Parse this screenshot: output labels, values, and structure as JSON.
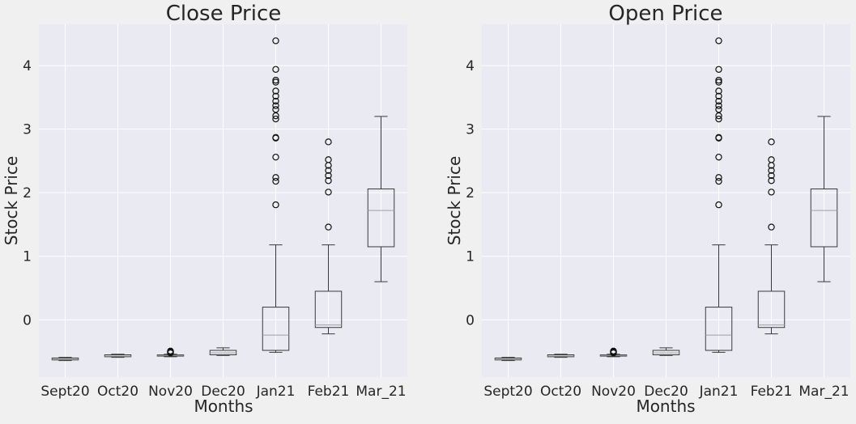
{
  "chart_data": [
    {
      "type": "box",
      "title": "Close Price",
      "xlabel": "Months",
      "ylabel": "Stock Price",
      "ylim": [
        -0.9,
        4.65
      ],
      "yticks": [
        0,
        1,
        2,
        3,
        4
      ],
      "grid": true,
      "categories": [
        "Sept20",
        "Oct20",
        "Nov20",
        "Dec20",
        "Jan21",
        "Feb21",
        "Mar_21"
      ],
      "boxes": [
        {
          "whislo": -0.64,
          "q1": -0.63,
          "med": -0.62,
          "q3": -0.6,
          "whishi": -0.59,
          "fliers": []
        },
        {
          "whislo": -0.59,
          "q1": -0.58,
          "med": -0.57,
          "q3": -0.55,
          "whishi": -0.54,
          "fliers": []
        },
        {
          "whislo": -0.58,
          "q1": -0.57,
          "med": -0.56,
          "q3": -0.55,
          "whishi": -0.54,
          "fliers": [
            -0.52,
            -0.51,
            -0.5,
            -0.49
          ]
        },
        {
          "whislo": -0.56,
          "q1": -0.55,
          "med": -0.52,
          "q3": -0.48,
          "whishi": -0.44,
          "fliers": []
        },
        {
          "whislo": -0.51,
          "q1": -0.48,
          "med": -0.24,
          "q3": 0.2,
          "whishi": 1.18,
          "fliers": [
            1.81,
            2.18,
            2.24,
            2.56,
            2.86,
            2.87,
            3.16,
            3.21,
            3.31,
            3.37,
            3.44,
            3.52,
            3.6,
            3.74,
            3.77,
            3.94,
            4.39
          ]
        },
        {
          "whislo": -0.22,
          "q1": -0.12,
          "med": -0.08,
          "q3": 0.45,
          "whishi": 1.18,
          "fliers": [
            1.46,
            2.01,
            2.19,
            2.27,
            2.35,
            2.43,
            2.52,
            2.8
          ]
        },
        {
          "whislo": 0.6,
          "q1": 1.15,
          "med": 1.72,
          "q3": 2.06,
          "whishi": 3.2,
          "fliers": []
        }
      ]
    },
    {
      "type": "box",
      "title": "Open Price",
      "xlabel": "Months",
      "ylabel": "Stock Price",
      "ylim": [
        -0.9,
        4.65
      ],
      "yticks": [
        0,
        1,
        2,
        3,
        4
      ],
      "grid": true,
      "categories": [
        "Sept20",
        "Oct20",
        "Nov20",
        "Dec20",
        "Jan21",
        "Feb21",
        "Mar_21"
      ],
      "boxes": [
        {
          "whislo": -0.64,
          "q1": -0.63,
          "med": -0.62,
          "q3": -0.6,
          "whishi": -0.59,
          "fliers": []
        },
        {
          "whislo": -0.59,
          "q1": -0.58,
          "med": -0.57,
          "q3": -0.55,
          "whishi": -0.54,
          "fliers": []
        },
        {
          "whislo": -0.58,
          "q1": -0.57,
          "med": -0.56,
          "q3": -0.55,
          "whishi": -0.54,
          "fliers": [
            -0.52,
            -0.51,
            -0.5,
            -0.49
          ]
        },
        {
          "whislo": -0.56,
          "q1": -0.55,
          "med": -0.52,
          "q3": -0.48,
          "whishi": -0.44,
          "fliers": []
        },
        {
          "whislo": -0.51,
          "q1": -0.48,
          "med": -0.24,
          "q3": 0.2,
          "whishi": 1.18,
          "fliers": [
            1.81,
            2.18,
            2.24,
            2.56,
            2.86,
            2.87,
            3.16,
            3.21,
            3.31,
            3.37,
            3.44,
            3.52,
            3.6,
            3.74,
            3.77,
            3.94,
            4.39
          ]
        },
        {
          "whislo": -0.22,
          "q1": -0.12,
          "med": -0.08,
          "q3": 0.45,
          "whishi": 1.18,
          "fliers": [
            1.46,
            2.01,
            2.19,
            2.27,
            2.35,
            2.43,
            2.52,
            2.8
          ]
        },
        {
          "whislo": 0.6,
          "q1": 1.15,
          "med": 1.72,
          "q3": 2.06,
          "whishi": 3.2,
          "fliers": []
        }
      ]
    }
  ]
}
